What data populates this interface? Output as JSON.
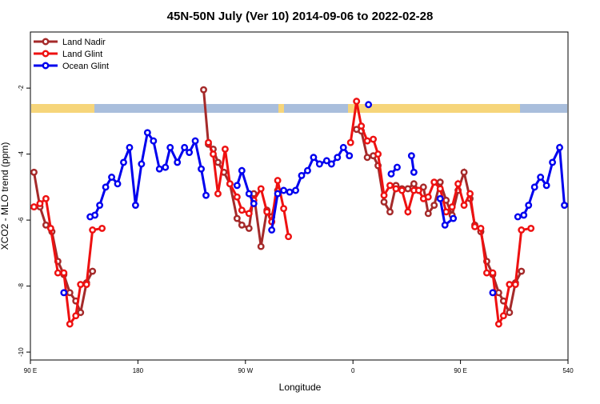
{
  "chart_data": {
    "type": "line",
    "title": "45N-50N July (Ver 10)   2014-09-06 to 2022-02-28",
    "xlabel": "Longitude",
    "ylabel": "XCO2 - MLO trend (ppm)",
    "xlim": [
      90,
      540
    ],
    "xticks": [
      {
        "value": 90,
        "label": "90 E"
      },
      180,
      {
        "value": 270,
        "label": "90 W"
      },
      0,
      {
        "value": 450,
        "label": "90 E"
      },
      540
    ],
    "xtick_positions": [
      90,
      180,
      270,
      360,
      450,
      540
    ],
    "ylim": [
      -10.24,
      -0.3
    ],
    "yticks": [
      -2,
      -4,
      -6,
      -8,
      -10
    ],
    "legend": "upper left",
    "series": [
      {
        "name": "Land Nadir",
        "color": "#a52a2a",
        "x": [
          93,
          98,
          103,
          108,
          113,
          118,
          123,
          128,
          132,
          137,
          142,
          null,
          235,
          239,
          243,
          247,
          252,
          257,
          263,
          267,
          273,
          277,
          283,
          288,
          292,
          297,
          null,
          363,
          367,
          372,
          377,
          381,
          386,
          391,
          396,
          401,
          406,
          411,
          415,
          419,
          423,
          428,
          433,
          438,
          443,
          448,
          453,
          458,
          462,
          467,
          472,
          477,
          482,
          486,
          491,
          496,
          501
        ],
        "values": [
          -4.55,
          -5.6,
          -6.15,
          -6.35,
          -7.25,
          -7.65,
          -8.2,
          -8.45,
          -8.8,
          -7.9,
          -7.55,
          null,
          -2.05,
          -3.7,
          -3.85,
          -4.25,
          -4.55,
          -4.9,
          -5.95,
          -6.15,
          -6.25,
          -5.2,
          -6.8,
          -5.7,
          -5.9,
          -5.1,
          null,
          -3.25,
          -3.3,
          -4.1,
          -4.05,
          -4.35,
          -5.45,
          -5.75,
          -4.95,
          -5.05,
          -5.05,
          -4.9,
          -5.1,
          -5.0,
          -5.8,
          -5.55,
          -4.85,
          -5.4,
          -5.85,
          -5.1,
          -4.55,
          -5.35,
          -6.15,
          -6.35,
          -7.25,
          -7.65,
          -8.2,
          -8.45,
          -8.8,
          -7.9,
          -7.55
        ]
      },
      {
        "name": "Land Glint",
        "color": "#ee1111",
        "x": [
          93,
          98,
          103,
          107,
          113,
          118,
          123,
          128,
          132,
          137,
          142,
          150,
          null,
          239,
          243,
          247,
          253,
          257,
          263,
          267,
          273,
          277,
          283,
          288,
          292,
          297,
          302,
          306,
          null,
          358,
          363,
          367,
          372,
          377,
          381,
          386,
          391,
          396,
          401,
          406,
          411,
          415,
          419,
          423,
          428,
          433,
          438,
          443,
          448,
          453,
          458,
          462,
          467,
          472,
          477,
          482,
          486,
          491,
          496,
          501,
          509
        ],
        "values": [
          -5.6,
          -5.5,
          -5.35,
          -6.25,
          -7.6,
          -7.6,
          -9.15,
          -8.9,
          -7.95,
          -7.95,
          -6.3,
          -6.25,
          null,
          -3.65,
          -4.0,
          -5.2,
          -3.85,
          -4.9,
          -5.3,
          -5.7,
          -5.8,
          -5.4,
          -5.05,
          -5.75,
          -6.05,
          -4.8,
          -5.65,
          -6.5,
          null,
          -3.65,
          -2.4,
          -3.15,
          -3.6,
          -3.55,
          -4.0,
          -5.25,
          -4.95,
          -5.05,
          -5.1,
          -5.75,
          -5.1,
          -5.1,
          -5.35,
          -5.3,
          -4.85,
          -5.05,
          -5.75,
          -5.6,
          -4.9,
          -5.55,
          -5.2,
          -6.2,
          -6.25,
          -7.6,
          -7.6,
          -9.15,
          -8.9,
          -7.95,
          -7.95,
          -6.3,
          -6.25
        ]
      },
      {
        "name": "Ocean Glint",
        "color": "#0000ee",
        "x": [
          118,
          null,
          140,
          144,
          148,
          153,
          158,
          163,
          168,
          173,
          178,
          183,
          188,
          193,
          198,
          203,
          207,
          213,
          219,
          223,
          228,
          233,
          237,
          null,
          263,
          267,
          273,
          277,
          null,
          292,
          297,
          302,
          307,
          312,
          317,
          322,
          327,
          332,
          338,
          342,
          347,
          352,
          357,
          null,
          373,
          null,
          392,
          397,
          null,
          409,
          411,
          null,
          433,
          437,
          444,
          null,
          477,
          null,
          498,
          503,
          507,
          512,
          517,
          522,
          527,
          533,
          537
        ],
        "values": [
          -8.2,
          null,
          -5.9,
          -5.85,
          -5.55,
          -5.0,
          -4.7,
          -4.9,
          -4.25,
          -3.8,
          -5.55,
          -4.3,
          -3.35,
          -3.6,
          -4.45,
          -4.4,
          -3.8,
          -4.25,
          -3.8,
          -3.95,
          -3.6,
          -4.45,
          -5.25,
          null,
          -4.95,
          -4.5,
          -5.2,
          -5.5,
          null,
          -6.3,
          -5.2,
          -5.1,
          -5.15,
          -5.1,
          -4.65,
          -4.5,
          -4.1,
          -4.3,
          -4.2,
          -4.3,
          -4.1,
          -3.8,
          -4.05,
          null,
          -2.5,
          null,
          -4.6,
          -4.4,
          null,
          -4.05,
          -4.55,
          null,
          -5.35,
          -6.15,
          -5.95,
          null,
          -8.2,
          null,
          -5.9,
          -5.85,
          -5.55,
          -5.0,
          -4.7,
          -4.95,
          -4.25,
          -3.8,
          -5.55
        ]
      }
    ]
  }
}
